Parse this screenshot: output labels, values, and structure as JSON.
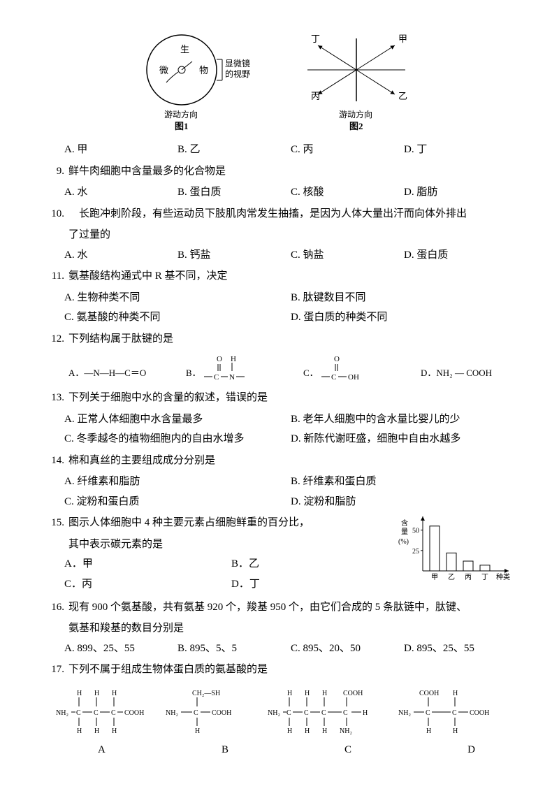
{
  "fig1": {
    "center_chars": [
      "生",
      "微",
      "物"
    ],
    "right_label": "显微镜\n的视野",
    "bottom": "游动方向",
    "caption": "图1"
  },
  "fig2": {
    "labels": [
      "丁",
      "甲",
      "乙",
      "丙"
    ],
    "bottom": "游动方向",
    "caption": "图2"
  },
  "optsABCD": {
    "a": "A. 甲",
    "b": "B. 乙",
    "c": "C. 丙",
    "d": "D. 丁"
  },
  "q9": {
    "num": "9.",
    "text": "鲜牛肉细胞中含量最多的化合物是",
    "a": "A. 水",
    "b": "B. 蛋白质",
    "c": "C. 核酸",
    "d": "D. 脂肪"
  },
  "q10": {
    "num": "10.",
    "l1": "　长跑冲刺阶段，有些运动员下肢肌肉常发生抽搐，是因为人体大量出汗而向体外排出",
    "l2": "了过量的",
    "a": "A. 水",
    "b": "B. 钙盐",
    "c": "C. 钠盐",
    "d": "D. 蛋白质"
  },
  "q11": {
    "num": "11.",
    "text": "氨基酸结构通式中 R 基不同，决定",
    "a": "A. 生物种类不同",
    "b": "B. 肽键数目不同",
    "c": "C. 氨基酸的种类不同",
    "d": "D. 蛋白质的种类不同"
  },
  "q12": {
    "num": "12.",
    "text": "下列结构属于肽键的是",
    "a": "A．—N—H—C＝O",
    "d": "D．NH₂ — COOH",
    "o_label": "O",
    "h_label": "H",
    "c_label": "C",
    "n_label": "N",
    "oh_label": "OH",
    "b_pre": "B．",
    "c_pre": "C．"
  },
  "q13": {
    "num": "13.",
    "text": "下列关于细胞中水的含量的叙述，错误的是",
    "a": "A. 正常人体细胞中水含量最多",
    "b": "B. 老年人细胞中的含水量比婴儿的少",
    "c": "C. 冬季越冬的植物细胞内的自由水增多",
    "d": "D. 新陈代谢旺盛，细胞中自由水越多"
  },
  "q14": {
    "num": "14.",
    "text": "棉和真丝的主要组成成分分别是",
    "a": "A. 纤维素和脂肪",
    "b": "B. 纤维素和蛋白质",
    "c": "C. 淀粉和蛋白质",
    "d": "D. 淀粉和脂肪"
  },
  "q15": {
    "num": "15.",
    "l1": "图示人体细胞中 4 种主要元素占细胞鲜重的百分比，",
    "l2": "其中表示碳元素的是",
    "a": "A．甲",
    "b": "B．乙",
    "c": "C．丙",
    "d": "D．丁",
    "chart": {
      "ylabel": "含量\n(%)",
      "xlabel": "种类",
      "cats": [
        "甲",
        "乙",
        "丙",
        "丁"
      ],
      "ticks": [
        "25",
        "50"
      ],
      "values": [
        55,
        22,
        12,
        7
      ],
      "ylim": 60,
      "axis_color": "#000000",
      "bar_fill": "#ffffff",
      "bar_stroke": "#000000"
    }
  },
  "q16": {
    "num": "16.",
    "l1": "现有 900 个氨基酸，共有氨基 920 个，羧基 950 个，由它们合成的 5 条肽链中，肽键、",
    "l2": "氨基和羧基的数目分别是",
    "a": "A. 899、25、55",
    "b": "B. 895、5、5",
    "c": "C. 895、20、50",
    "d": "D. 895、25、55"
  },
  "q17": {
    "num": "17.",
    "text": "下列不属于组成生物体蛋白质的氨基酸的是",
    "labels": {
      "a": "A",
      "b": "B",
      "c": "C",
      "d": "D"
    },
    "atoms": {
      "H": "H",
      "C": "C",
      "N": "N",
      "O": "O",
      "NH2": "NH₂",
      "COOH": "COOH",
      "CH2SH": "CH₂—SH"
    }
  }
}
